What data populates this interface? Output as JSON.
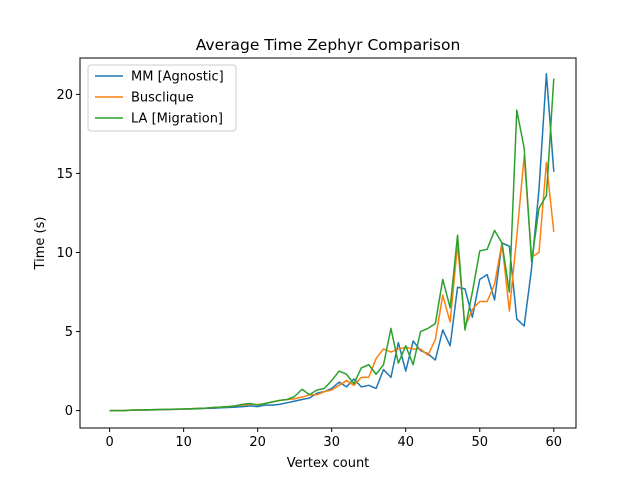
{
  "chart_data": {
    "type": "line",
    "title": "Average Time Zephyr Comparison",
    "xlabel": "Vertex count",
    "ylabel": "Time (s)",
    "xlim": [
      -4,
      63
    ],
    "ylim": [
      -1.1,
      22.3
    ],
    "xticks": [
      0,
      10,
      20,
      30,
      40,
      50,
      60
    ],
    "yticks": [
      0,
      5,
      10,
      15,
      20
    ],
    "grid": false,
    "legend_position": "top-left",
    "x": [
      0,
      1,
      2,
      3,
      4,
      5,
      6,
      7,
      8,
      9,
      10,
      11,
      12,
      13,
      14,
      15,
      16,
      17,
      18,
      19,
      20,
      21,
      22,
      23,
      24,
      25,
      26,
      27,
      28,
      29,
      30,
      31,
      32,
      33,
      34,
      35,
      36,
      37,
      38,
      39,
      40,
      41,
      42,
      43,
      44,
      45,
      46,
      47,
      48,
      49,
      50,
      51,
      52,
      53,
      54,
      55,
      56,
      57,
      58,
      59,
      60
    ],
    "series": [
      {
        "name": "MM [Agnostic]",
        "color": "#1f77b4",
        "values": [
          0.0,
          0.0,
          0.0,
          0.03,
          0.03,
          0.04,
          0.05,
          0.06,
          0.07,
          0.08,
          0.1,
          0.1,
          0.12,
          0.14,
          0.15,
          0.18,
          0.2,
          0.22,
          0.25,
          0.3,
          0.25,
          0.35,
          0.35,
          0.4,
          0.5,
          0.6,
          0.7,
          0.8,
          1.1,
          1.2,
          1.4,
          1.8,
          1.5,
          2.0,
          1.5,
          1.6,
          1.4,
          2.6,
          2.1,
          4.3,
          2.5,
          4.4,
          3.8,
          3.6,
          3.2,
          5.1,
          4.1,
          7.8,
          7.7,
          5.9,
          8.3,
          8.6,
          7.0,
          10.6,
          10.4,
          5.8,
          5.35,
          9.0,
          14.0,
          21.3,
          15.1
        ]
      },
      {
        "name": "Busclique",
        "color": "#ff7f0e",
        "values": [
          0.0,
          0.0,
          0.0,
          0.04,
          0.04,
          0.05,
          0.06,
          0.07,
          0.08,
          0.09,
          0.1,
          0.12,
          0.14,
          0.16,
          0.2,
          0.22,
          0.25,
          0.3,
          0.35,
          0.4,
          0.38,
          0.45,
          0.55,
          0.65,
          0.7,
          0.75,
          0.85,
          1.0,
          1.0,
          1.2,
          1.3,
          1.6,
          1.9,
          1.6,
          2.1,
          2.1,
          3.3,
          3.9,
          3.7,
          3.9,
          4.0,
          3.9,
          3.9,
          3.5,
          4.5,
          7.3,
          5.6,
          10.5,
          5.3,
          6.4,
          6.9,
          6.9,
          8.0,
          10.6,
          6.3,
          11.0,
          16.1,
          9.7,
          10.0,
          15.7,
          11.3
        ]
      },
      {
        "name": "LA [Migration]",
        "color": "#2ca02c",
        "values": [
          0.0,
          0.0,
          0.0,
          0.03,
          0.04,
          0.05,
          0.06,
          0.07,
          0.08,
          0.09,
          0.1,
          0.12,
          0.14,
          0.16,
          0.2,
          0.22,
          0.25,
          0.3,
          0.4,
          0.45,
          0.35,
          0.45,
          0.55,
          0.65,
          0.7,
          0.9,
          1.35,
          1.0,
          1.3,
          1.4,
          1.9,
          2.5,
          2.3,
          1.7,
          2.7,
          2.9,
          2.3,
          2.9,
          5.2,
          3.0,
          4.1,
          2.9,
          5.0,
          5.2,
          5.5,
          8.3,
          6.5,
          11.1,
          5.1,
          7.5,
          10.1,
          10.2,
          11.4,
          10.6,
          7.5,
          19.0,
          16.6,
          9.4,
          12.8,
          13.6,
          21.0
        ]
      }
    ]
  }
}
